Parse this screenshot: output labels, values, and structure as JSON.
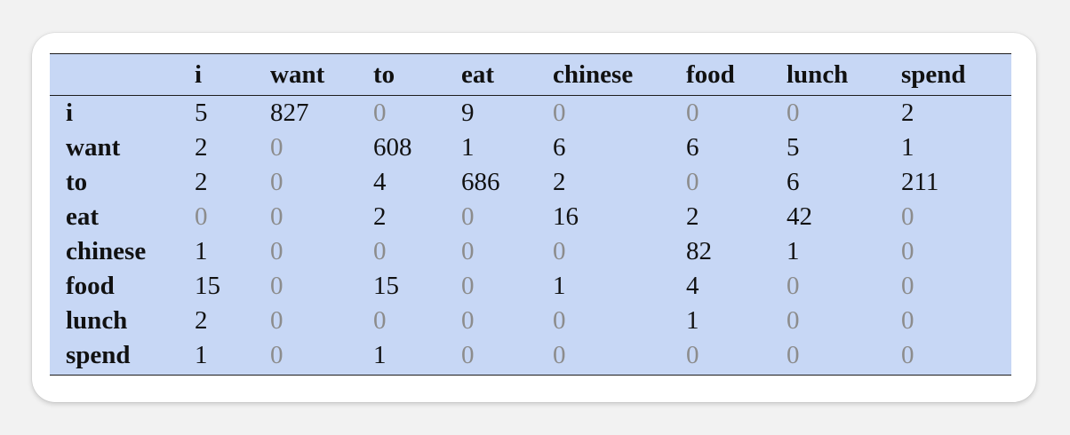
{
  "table": {
    "columns": [
      "",
      "i",
      "want",
      "to",
      "eat",
      "chinese",
      "food",
      "lunch",
      "spend"
    ],
    "rows": [
      {
        "label": "i",
        "values": [
          "5",
          "827",
          "0",
          "9",
          "0",
          "0",
          "0",
          "2"
        ]
      },
      {
        "label": "want",
        "values": [
          "2",
          "0",
          "608",
          "1",
          "6",
          "6",
          "5",
          "1"
        ]
      },
      {
        "label": "to",
        "values": [
          "2",
          "0",
          "4",
          "686",
          "2",
          "0",
          "6",
          "211"
        ]
      },
      {
        "label": "eat",
        "values": [
          "0",
          "0",
          "2",
          "0",
          "16",
          "2",
          "42",
          "0"
        ]
      },
      {
        "label": "chinese",
        "values": [
          "1",
          "0",
          "0",
          "0",
          "0",
          "82",
          "1",
          "0"
        ]
      },
      {
        "label": "food",
        "values": [
          "15",
          "0",
          "15",
          "0",
          "1",
          "4",
          "0",
          "0"
        ]
      },
      {
        "label": "lunch",
        "values": [
          "2",
          "0",
          "0",
          "0",
          "0",
          "1",
          "0",
          "0"
        ]
      },
      {
        "label": "spend",
        "values": [
          "1",
          "0",
          "1",
          "0",
          "0",
          "0",
          "0",
          "0"
        ]
      }
    ]
  },
  "colors": {
    "table_background": "#c7d7f5",
    "text": "#111111",
    "zero_text": "#8c8c8c",
    "rule": "#1d1d1d"
  }
}
